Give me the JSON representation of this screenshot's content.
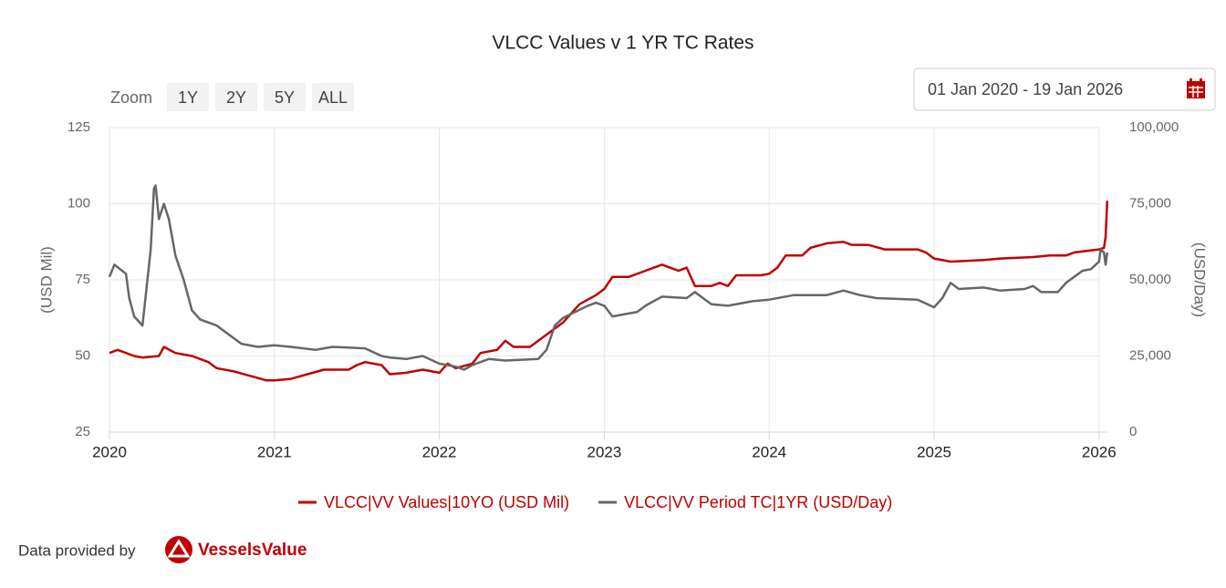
{
  "chart_data": {
    "type": "line",
    "title": "VLCC Values v 1 YR TC Rates",
    "y_label": "(USD Mil)",
    "y2_label": "(USD/Day)",
    "xlim": [
      2020,
      2026.05
    ],
    "xticks": [
      2020,
      2021,
      2022,
      2023,
      2024,
      2025,
      2026
    ],
    "ylim": [
      25,
      125
    ],
    "yticks": [
      25,
      50,
      75,
      100,
      125
    ],
    "y2lim": [
      0,
      100000
    ],
    "y2ticks": [
      0,
      {
        "value": 25000,
        "label": "25,000"
      },
      {
        "value": 50000,
        "label": "50,000"
      },
      {
        "value": 75000,
        "label": "75,000"
      },
      {
        "value": 100000,
        "label": "100,000"
      }
    ],
    "grid": true,
    "legend": "bottom",
    "series": [
      {
        "name": "VLCC|VV Values|10YO (USD Mil)",
        "color": "#c00000",
        "axis": "y",
        "x": [
          2020.0,
          2020.05,
          2020.15,
          2020.2,
          2020.3,
          2020.33,
          2020.4,
          2020.5,
          2020.6,
          2020.65,
          2020.75,
          2020.85,
          2020.95,
          2021.0,
          2021.1,
          2021.2,
          2021.3,
          2021.45,
          2021.5,
          2021.55,
          2021.65,
          2021.7,
          2021.8,
          2021.9,
          2022.0,
          2022.05,
          2022.1,
          2022.2,
          2022.25,
          2022.35,
          2022.4,
          2022.45,
          2022.55,
          2022.65,
          2022.75,
          2022.85,
          2022.95,
          2023.0,
          2023.05,
          2023.15,
          2023.25,
          2023.35,
          2023.45,
          2023.5,
          2023.55,
          2023.65,
          2023.7,
          2023.75,
          2023.8,
          2023.95,
          2024.0,
          2024.05,
          2024.1,
          2024.2,
          2024.25,
          2024.35,
          2024.45,
          2024.5,
          2024.6,
          2024.7,
          2024.9,
          2024.95,
          2025.0,
          2025.1,
          2025.3,
          2025.4,
          2025.6,
          2025.7,
          2025.8,
          2025.85,
          2026.0,
          2026.03,
          2026.04,
          2026.05
        ],
        "values": [
          51,
          52,
          50,
          49.5,
          50,
          53,
          51,
          50,
          48,
          46,
          45,
          43.5,
          42,
          42,
          42.5,
          44,
          45.5,
          45.5,
          47,
          48,
          47,
          44,
          44.5,
          45.5,
          44.5,
          47.5,
          46,
          47.5,
          51,
          52,
          55,
          53,
          53,
          57,
          61,
          67,
          70,
          72,
          76,
          76,
          78,
          80,
          78,
          79,
          73,
          73,
          74,
          73,
          76.5,
          76.5,
          77,
          79,
          83,
          83,
          85.5,
          87,
          87.5,
          86.5,
          86.5,
          85,
          85,
          84,
          82,
          81,
          81.5,
          82,
          82.5,
          83,
          83,
          84,
          85,
          85.5,
          89,
          101
        ]
      },
      {
        "name": "VLCC|VV Period TC|1YR (USD/Day)",
        "color": "#666666",
        "axis": "y2",
        "x": [
          2020.0,
          2020.03,
          2020.1,
          2020.12,
          2020.15,
          2020.2,
          2020.22,
          2020.25,
          2020.27,
          2020.28,
          2020.3,
          2020.33,
          2020.36,
          2020.4,
          2020.45,
          2020.5,
          2020.55,
          2020.65,
          2020.75,
          2020.8,
          2020.9,
          2021.0,
          2021.1,
          2021.25,
          2021.35,
          2021.55,
          2021.65,
          2021.7,
          2021.8,
          2021.9,
          2022.0,
          2022.1,
          2022.15,
          2022.2,
          2022.3,
          2022.4,
          2022.6,
          2022.65,
          2022.7,
          2022.75,
          2022.9,
          2022.95,
          2023.0,
          2023.05,
          2023.2,
          2023.25,
          2023.3,
          2023.35,
          2023.5,
          2023.55,
          2023.65,
          2023.75,
          2023.9,
          2024.0,
          2024.15,
          2024.25,
          2024.35,
          2024.45,
          2024.55,
          2024.65,
          2024.9,
          2025.0,
          2025.05,
          2025.1,
          2025.15,
          2025.3,
          2025.4,
          2025.55,
          2025.6,
          2025.65,
          2025.75,
          2025.8,
          2025.9,
          2025.95,
          2026.0,
          2026.01,
          2026.03,
          2026.04,
          2026.05
        ],
        "values": [
          51000,
          55000,
          52000,
          44000,
          38000,
          35000,
          45000,
          60000,
          80000,
          81000,
          70000,
          75000,
          70000,
          58000,
          50000,
          40000,
          37000,
          35000,
          31000,
          29000,
          28000,
          28500,
          28000,
          27000,
          28000,
          27500,
          25000,
          24500,
          24000,
          25000,
          22500,
          21500,
          20500,
          22000,
          24000,
          23500,
          24000,
          27000,
          35000,
          37500,
          41500,
          42500,
          41500,
          38000,
          39500,
          41500,
          43000,
          44500,
          44000,
          46000,
          42000,
          41500,
          43000,
          43500,
          45000,
          45000,
          45000,
          46500,
          45000,
          44000,
          43500,
          41000,
          44000,
          49000,
          47000,
          47500,
          46500,
          47000,
          48000,
          46000,
          46000,
          49000,
          53000,
          53500,
          56000,
          60000,
          59000,
          55000,
          59000
        ]
      }
    ]
  },
  "ui": {
    "zoom_label": "Zoom",
    "zoom_buttons": [
      "1Y",
      "2Y",
      "5Y",
      "ALL"
    ],
    "date_range": "01 Jan 2020 - 19 Jan 2026"
  },
  "footer": {
    "credit": "Data provided by",
    "brand": "VesselsValue"
  }
}
